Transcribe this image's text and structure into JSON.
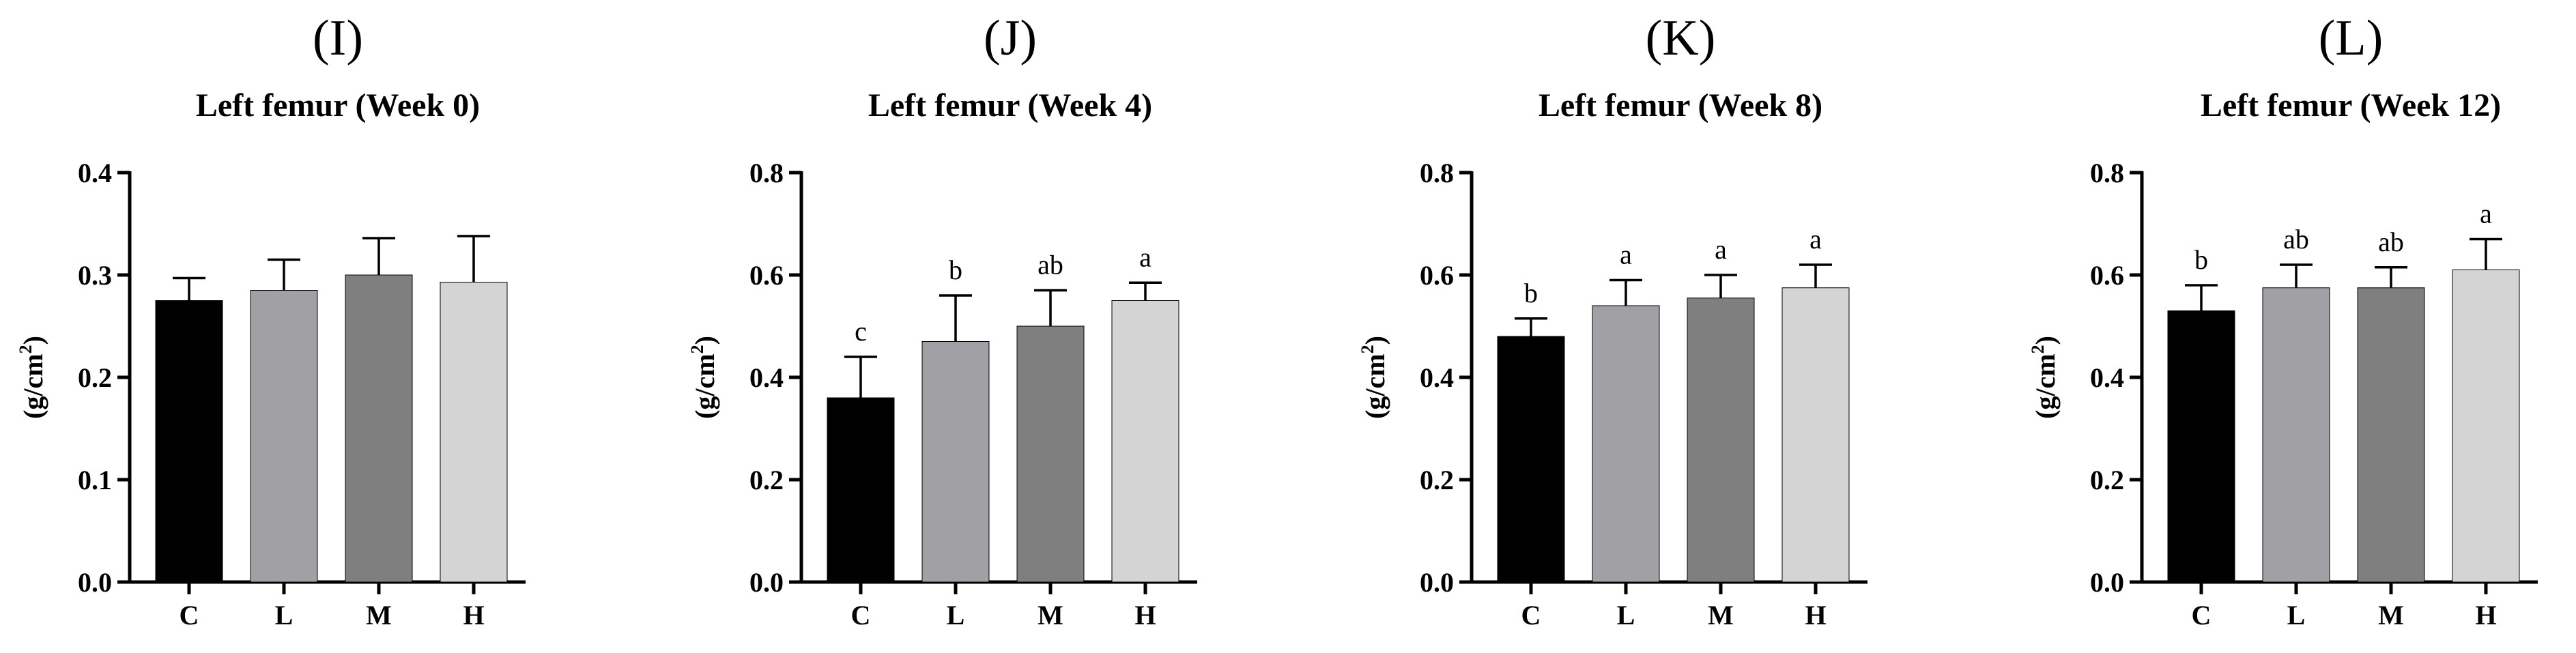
{
  "figure": {
    "colors": {
      "C": "#000000",
      "L": "#a0a0a5",
      "M": "#7f7f7f",
      "H": "#d4d4d4"
    }
  },
  "chart_data": [
    {
      "type": "bar",
      "panel_label": "(I)",
      "title": "Left femur (Week 0)",
      "ylabel": "(g/cm2)",
      "ylabel_parts": {
        "main": "(g/cm",
        "sup": "2",
        "close": ")"
      },
      "categories": [
        "C",
        "L",
        "M",
        "H"
      ],
      "values": [
        0.275,
        0.285,
        0.3,
        0.293
      ],
      "errors": [
        0.022,
        0.03,
        0.036,
        0.045
      ],
      "significance": [],
      "ylim": [
        0,
        0.4
      ],
      "yticks": [
        0.0,
        0.1,
        0.2,
        0.3,
        0.4
      ],
      "ytick_labels": [
        "0.0",
        "0.1",
        "0.2",
        "0.3",
        "0.4"
      ]
    },
    {
      "type": "bar",
      "panel_label": "(J)",
      "title": "Left femur (Week 4)",
      "ylabel": "(g/cm2)",
      "ylabel_parts": {
        "main": "(g/cm",
        "sup": "2",
        "close": ")"
      },
      "categories": [
        "C",
        "L",
        "M",
        "H"
      ],
      "values": [
        0.36,
        0.47,
        0.5,
        0.55
      ],
      "errors": [
        0.08,
        0.09,
        0.07,
        0.035
      ],
      "significance": [
        "c",
        "b",
        "ab",
        "a"
      ],
      "ylim": [
        0,
        0.8
      ],
      "yticks": [
        0.0,
        0.2,
        0.4,
        0.6,
        0.8
      ],
      "ytick_labels": [
        "0.0",
        "0.2",
        "0.4",
        "0.6",
        "0.8"
      ]
    },
    {
      "type": "bar",
      "panel_label": "(K)",
      "title": "Left femur (Week 8)",
      "ylabel": "(g/cm2)",
      "ylabel_parts": {
        "main": "(g/cm",
        "sup": "2",
        "close": ")"
      },
      "categories": [
        "C",
        "L",
        "M",
        "H"
      ],
      "values": [
        0.48,
        0.54,
        0.555,
        0.575
      ],
      "errors": [
        0.035,
        0.05,
        0.045,
        0.045
      ],
      "significance": [
        "b",
        "a",
        "a",
        "a"
      ],
      "ylim": [
        0,
        0.8
      ],
      "yticks": [
        0.0,
        0.2,
        0.4,
        0.6,
        0.8
      ],
      "ytick_labels": [
        "0.0",
        "0.2",
        "0.4",
        "0.6",
        "0.8"
      ]
    },
    {
      "type": "bar",
      "panel_label": "(L)",
      "title": "Left femur (Week 12)",
      "ylabel": "(g/cm2)",
      "ylabel_parts": {
        "main": "(g/cm",
        "sup": "2",
        "close": ")"
      },
      "categories": [
        "C",
        "L",
        "M",
        "H"
      ],
      "values": [
        0.53,
        0.575,
        0.575,
        0.61
      ],
      "errors": [
        0.05,
        0.045,
        0.04,
        0.06
      ],
      "significance": [
        "b",
        "ab",
        "ab",
        "a"
      ],
      "ylim": [
        0,
        0.8
      ],
      "yticks": [
        0.0,
        0.2,
        0.4,
        0.6,
        0.8
      ],
      "ytick_labels": [
        "0.0",
        "0.2",
        "0.4",
        "0.6",
        "0.8"
      ]
    }
  ]
}
